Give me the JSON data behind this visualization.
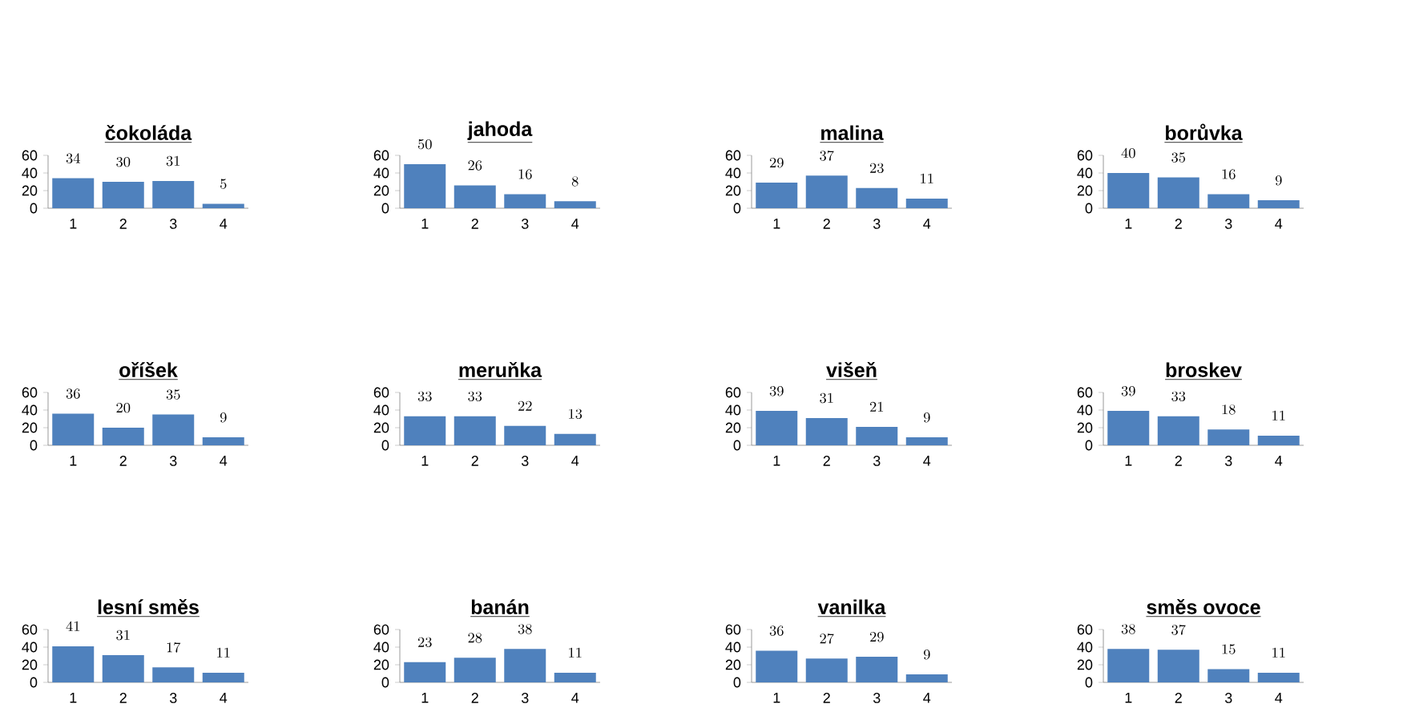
{
  "chart_data": [
    {
      "type": "bar",
      "title": "čokoláda",
      "categories": [
        "1",
        "2",
        "3",
        "4"
      ],
      "values": [
        34,
        30,
        31,
        5
      ],
      "color": "#4f81bd",
      "ylim": [
        0,
        60
      ],
      "yticks": [
        0,
        20,
        40,
        60
      ],
      "data_labels": true
    },
    {
      "type": "bar",
      "title": "jahoda",
      "categories": [
        "1",
        "2",
        "3",
        "4"
      ],
      "values": [
        50,
        26,
        16,
        8
      ],
      "color": "#4f81bd",
      "ylim": [
        0,
        60
      ],
      "yticks": [
        0,
        20,
        40,
        60
      ],
      "data_labels": true
    },
    {
      "type": "bar",
      "title": "malina",
      "categories": [
        "1",
        "2",
        "3",
        "4"
      ],
      "values": [
        29,
        37,
        23,
        11
      ],
      "color": "#4f81bd",
      "ylim": [
        0,
        60
      ],
      "yticks": [
        0,
        20,
        40,
        60
      ],
      "data_labels": true
    },
    {
      "type": "bar",
      "title": "borůvka",
      "categories": [
        "1",
        "2",
        "3",
        "4"
      ],
      "values": [
        40,
        35,
        16,
        9
      ],
      "color": "#4f81bd",
      "ylim": [
        0,
        60
      ],
      "yticks": [
        0,
        20,
        40,
        60
      ],
      "data_labels": true
    },
    {
      "type": "bar",
      "title": "oříšek",
      "categories": [
        "1",
        "2",
        "3",
        "4"
      ],
      "values": [
        36,
        20,
        35,
        9
      ],
      "color": "#4f81bd",
      "ylim": [
        0,
        60
      ],
      "yticks": [
        0,
        20,
        40,
        60
      ],
      "data_labels": true
    },
    {
      "type": "bar",
      "title": "meruňka",
      "categories": [
        "1",
        "2",
        "3",
        "4"
      ],
      "values": [
        33,
        33,
        22,
        13
      ],
      "color": "#4f81bd",
      "ylim": [
        0,
        60
      ],
      "yticks": [
        0,
        20,
        40,
        60
      ],
      "data_labels": true
    },
    {
      "type": "bar",
      "title": "višeň",
      "categories": [
        "1",
        "2",
        "3",
        "4"
      ],
      "values": [
        39,
        31,
        21,
        9
      ],
      "color": "#4f81bd",
      "ylim": [
        0,
        60
      ],
      "yticks": [
        0,
        20,
        40,
        60
      ],
      "data_labels": true
    },
    {
      "type": "bar",
      "title": "broskev",
      "categories": [
        "1",
        "2",
        "3",
        "4"
      ],
      "values": [
        39,
        33,
        18,
        11
      ],
      "color": "#4f81bd",
      "ylim": [
        0,
        60
      ],
      "yticks": [
        0,
        20,
        40,
        60
      ],
      "data_labels": true
    },
    {
      "type": "bar",
      "title": "lesní směs",
      "categories": [
        "1",
        "2",
        "3",
        "4"
      ],
      "values": [
        41,
        31,
        17,
        11
      ],
      "color": "#4f81bd",
      "ylim": [
        0,
        60
      ],
      "yticks": [
        0,
        20,
        40,
        60
      ],
      "data_labels": true
    },
    {
      "type": "bar",
      "title": "banán",
      "categories": [
        "1",
        "2",
        "3",
        "4"
      ],
      "values": [
        23,
        28,
        38,
        11
      ],
      "color": "#4f81bd",
      "ylim": [
        0,
        60
      ],
      "yticks": [
        0,
        20,
        40,
        60
      ],
      "data_labels": true
    },
    {
      "type": "bar",
      "title": "vanilka",
      "categories": [
        "1",
        "2",
        "3",
        "4"
      ],
      "values": [
        36,
        27,
        29,
        9
      ],
      "color": "#4f81bd",
      "ylim": [
        0,
        60
      ],
      "yticks": [
        0,
        20,
        40,
        60
      ],
      "data_labels": true
    },
    {
      "type": "bar",
      "title": "směs ovoce",
      "categories": [
        "1",
        "2",
        "3",
        "4"
      ],
      "values": [
        38,
        37,
        15,
        11
      ],
      "color": "#4f81bd",
      "ylim": [
        0,
        60
      ],
      "yticks": [
        0,
        20,
        40,
        60
      ],
      "data_labels": true
    }
  ]
}
